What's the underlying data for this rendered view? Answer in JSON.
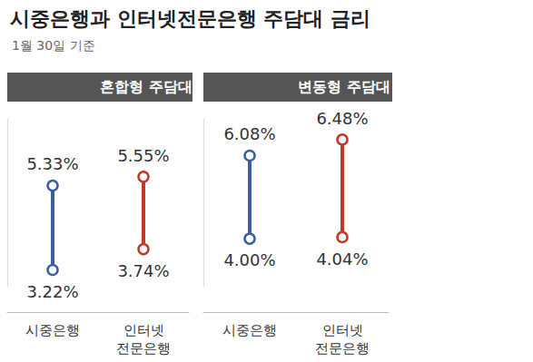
{
  "chart_data": {
    "type": "range",
    "title": "시중은행과 인터넷전문은행 주담대 금리",
    "subtitle": "1월 30일 기준",
    "categories": [
      "시중은행",
      "인터넷\n전문은행"
    ],
    "colors": [
      "#3b5fa3",
      "#c0392b"
    ],
    "ylim": [
      2.8,
      7.0
    ],
    "grid": false,
    "tick_labels": "x",
    "data_labels": true,
    "panels": [
      {
        "title": "혼합형 주담대 금리",
        "values": [
          [
            3.22,
            5.33
          ],
          [
            3.74,
            5.55
          ]
        ],
        "value_labels": [
          [
            "3.22%",
            "5.33%"
          ],
          [
            "3.74%",
            "5.55%"
          ]
        ]
      },
      {
        "title": "변동형 주담대 금리",
        "values": [
          [
            4.0,
            6.08
          ],
          [
            4.04,
            6.48
          ]
        ],
        "value_labels": [
          [
            "4.00%",
            "6.08%"
          ],
          [
            "4.04%",
            "6.48%"
          ]
        ]
      }
    ]
  }
}
